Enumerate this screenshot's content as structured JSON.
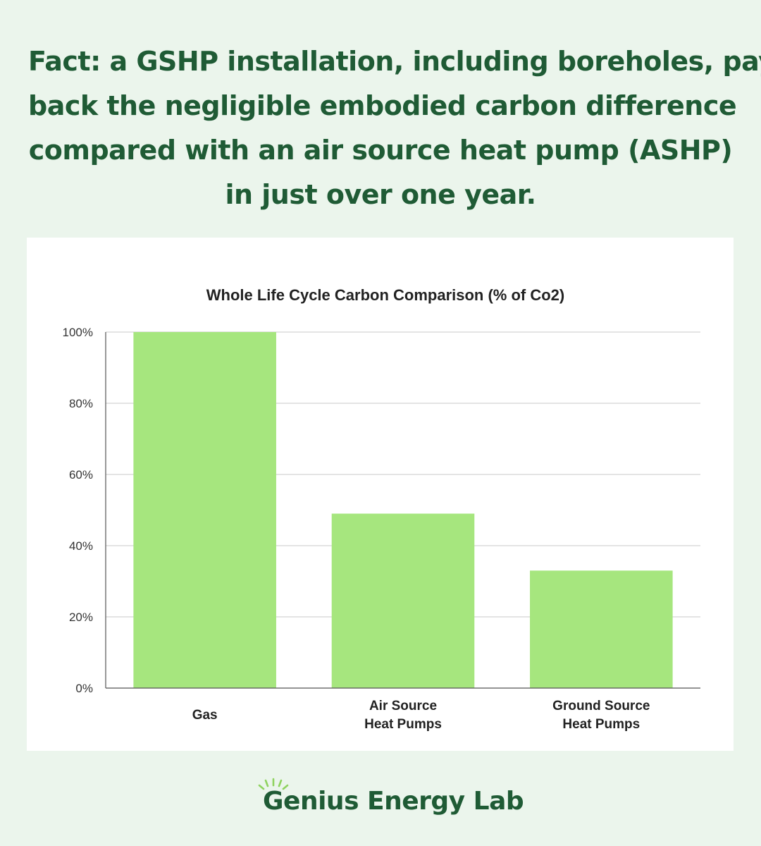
{
  "headline": {
    "lines": [
      "Fact: a GSHP installation, including boreholes, pays",
      "back the negligible embodied carbon difference",
      "compared with an air source heat pump (ASHP)",
      "in just over one year."
    ]
  },
  "chart_data": {
    "type": "bar",
    "title": "Whole Life Cycle Carbon Comparison (% of Co2)",
    "categories": [
      [
        "Gas"
      ],
      [
        "Air Source",
        "Heat Pumps"
      ],
      [
        "Ground Source",
        "Heat Pumps"
      ]
    ],
    "values": [
      100,
      49,
      33
    ],
    "ylim": [
      0,
      100
    ],
    "yticks": [
      0,
      20,
      40,
      60,
      80,
      100
    ],
    "ytick_labels": [
      "0%",
      "20%",
      "40%",
      "60%",
      "80%",
      "100%"
    ],
    "xlabel": "",
    "ylabel": "",
    "grid": true,
    "bar_color": "#a6e67e"
  },
  "brand": {
    "name": "Genius Energy Lab",
    "color": "#1f5b35",
    "icon": "sun-rays-icon"
  }
}
